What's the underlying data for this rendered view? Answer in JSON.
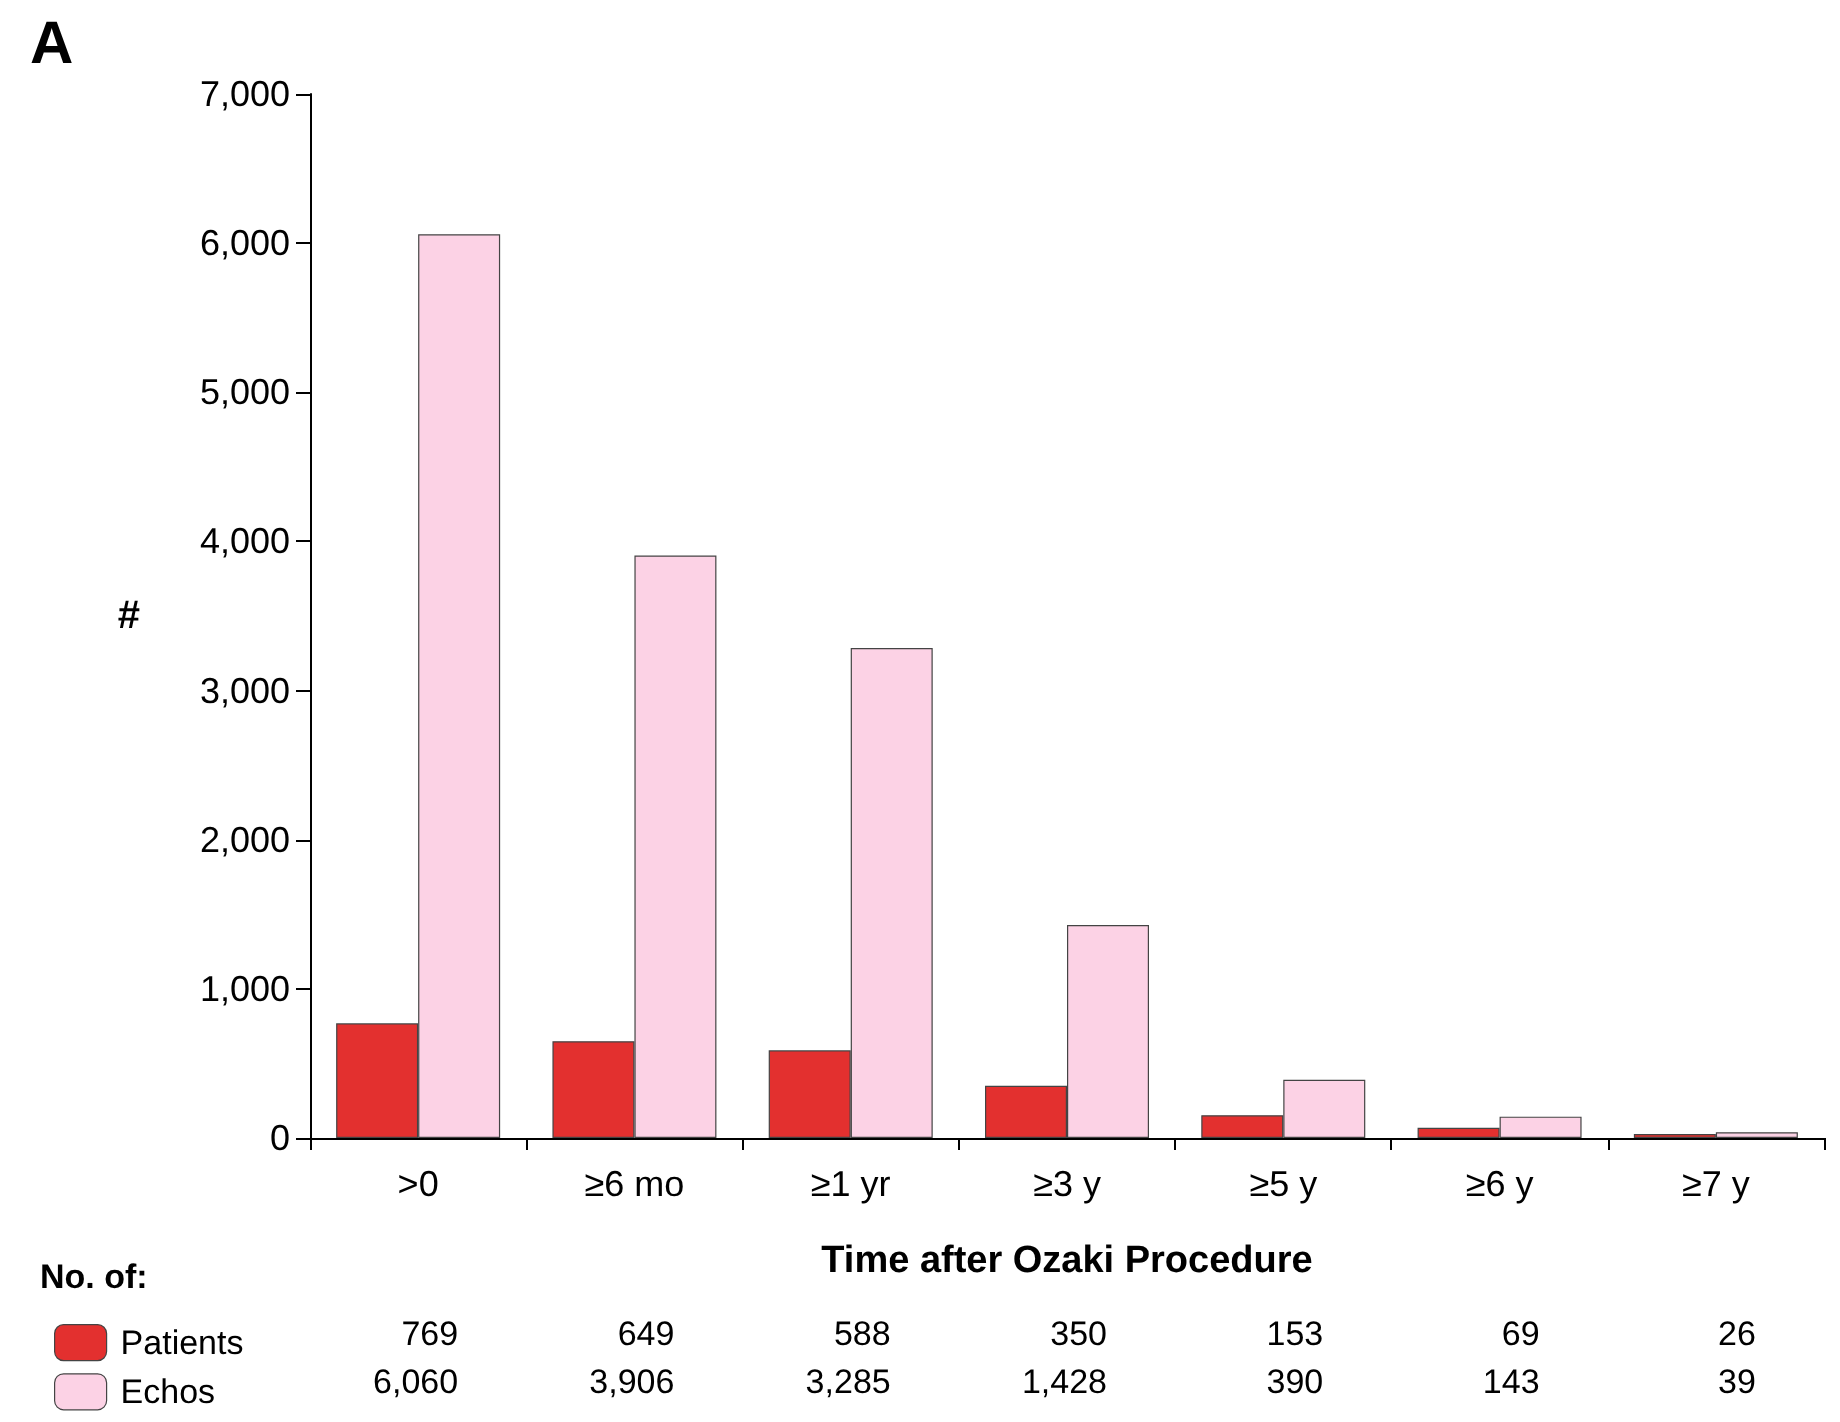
{
  "chart_data": {
    "type": "bar",
    "title": "A",
    "xlabel": "Time after Ozaki Procedure",
    "ylabel": "#",
    "legend_title": "No. of:",
    "categories": [
      ">0",
      "≥6 mo",
      "≥1 yr",
      "≥3 y",
      "≥5 y",
      "≥6 y",
      "≥7 y"
    ],
    "series": [
      {
        "name": "Patients",
        "color": "#e3302f",
        "values": [
          769,
          649,
          588,
          350,
          153,
          69,
          26
        ],
        "value_labels": [
          "769",
          "649",
          "588",
          "350",
          "153",
          "69",
          "26"
        ]
      },
      {
        "name": "Echos",
        "color": "#fcd2e5",
        "values": [
          6060,
          3906,
          3285,
          1428,
          390,
          143,
          39
        ],
        "value_labels": [
          "6,060",
          "3,906",
          "3,285",
          "1,428",
          "390",
          "143",
          "39"
        ]
      }
    ],
    "ylim": [
      0,
      7000
    ],
    "yticks": [
      0,
      {
        "value": 1000,
        "label": "1,000"
      },
      {
        "value": 2000,
        "label": "2,000"
      },
      {
        "value": 3000,
        "label": "3,000"
      },
      {
        "value": 4000,
        "label": "4,000"
      },
      {
        "value": 5000,
        "label": "5,000"
      },
      {
        "value": 6000,
        "label": "6,000"
      },
      {
        "value": 7000,
        "label": "7,000"
      }
    ],
    "grid": false,
    "legend": "bottom"
  }
}
